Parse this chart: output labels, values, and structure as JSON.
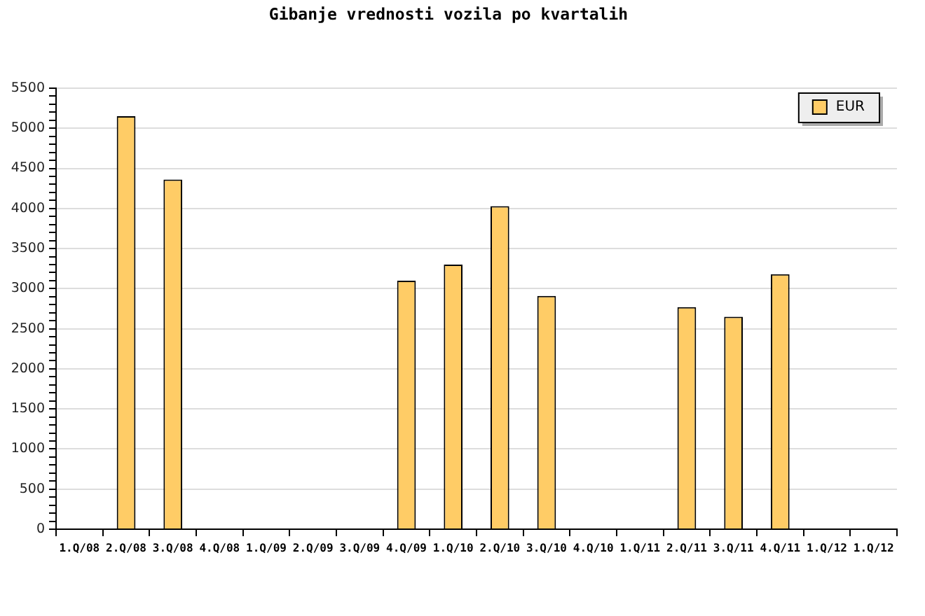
{
  "chart_data": {
    "type": "bar",
    "title": "Gibanje vrednosti vozila po kvartalih",
    "categories": [
      "1.Q/08",
      "2.Q/08",
      "3.Q/08",
      "4.Q/08",
      "1.Q/09",
      "2.Q/09",
      "3.Q/09",
      "4.Q/09",
      "1.Q/10",
      "2.Q/10",
      "3.Q/10",
      "4.Q/10",
      "1.Q/11",
      "2.Q/11",
      "3.Q/11",
      "4.Q/11",
      "1.Q/12",
      "1.Q/12"
    ],
    "series": [
      {
        "name": "EUR",
        "color": "#ffcc66",
        "values": [
          null,
          5150,
          4360,
          null,
          null,
          null,
          null,
          3100,
          3300,
          4030,
          2910,
          null,
          null,
          2770,
          2650,
          3180,
          null,
          null
        ]
      }
    ],
    "ylim": [
      0,
      5500
    ],
    "yticks": [
      0,
      {
        "value": 100,
        "label": null
      },
      {
        "value": 200,
        "label": null
      },
      {
        "value": 300,
        "label": null
      },
      {
        "value": 400,
        "label": null
      },
      500,
      {
        "value": 600,
        "label": null
      },
      {
        "value": 700,
        "label": null
      },
      {
        "value": 800,
        "label": null
      },
      {
        "value": 900,
        "label": null
      },
      1000,
      {
        "value": 1100,
        "label": null
      },
      {
        "value": 1200,
        "label": null
      },
      {
        "value": 1300,
        "label": null
      },
      {
        "value": 1400,
        "label": null
      },
      1500,
      {
        "value": 1600,
        "label": null
      },
      {
        "value": 1700,
        "label": null
      },
      {
        "value": 1800,
        "label": null
      },
      {
        "value": 1900,
        "label": null
      },
      2000,
      {
        "value": 2100,
        "label": null
      },
      {
        "value": 2200,
        "label": null
      },
      {
        "value": 2300,
        "label": null
      },
      {
        "value": 2400,
        "label": null
      },
      2500,
      {
        "value": 2600,
        "label": null
      },
      {
        "value": 2700,
        "label": null
      },
      {
        "value": 2800,
        "label": null
      },
      {
        "value": 2900,
        "label": null
      },
      3000,
      {
        "value": 3100,
        "label": null
      },
      {
        "value": 3200,
        "label": null
      },
      {
        "value": 3300,
        "label": null
      },
      {
        "value": 3400,
        "label": null
      },
      3500,
      {
        "value": 3600,
        "label": null
      },
      {
        "value": 3700,
        "label": null
      },
      {
        "value": 3800,
        "label": null
      },
      {
        "value": 3900,
        "label": null
      },
      4000,
      {
        "value": 4100,
        "label": null
      },
      {
        "value": 4200,
        "label": null
      },
      {
        "value": 4300,
        "label": null
      },
      {
        "value": 4400,
        "label": null
      },
      4500,
      {
        "value": 4600,
        "label": null
      },
      {
        "value": 4700,
        "label": null
      },
      {
        "value": 4800,
        "label": null
      },
      {
        "value": 4900,
        "label": null
      },
      5000,
      {
        "value": 5100,
        "label": null
      },
      {
        "value": 5200,
        "label": null
      },
      {
        "value": 5300,
        "label": null
      },
      {
        "value": 5400,
        "label": null
      },
      5500
    ],
    "grid": "y",
    "legend": "top right"
  }
}
